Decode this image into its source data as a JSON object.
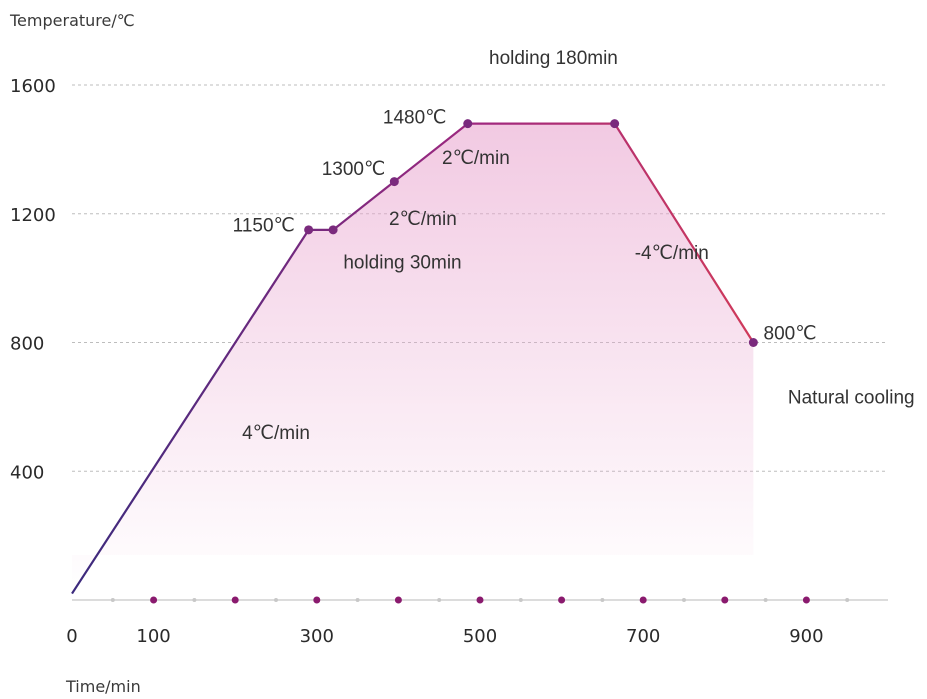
{
  "chart_data": {
    "type": "line",
    "ylabel": "Temperature/℃",
    "xlabel": "Time/min",
    "xlim": [
      0,
      1000
    ],
    "ylim": [
      0,
      1600
    ],
    "x_ticks": [
      0,
      100,
      300,
      500,
      700,
      900
    ],
    "y_ticks": [
      400,
      800,
      1200,
      1600
    ],
    "x_minor_ticks": [
      50,
      100,
      150,
      200,
      250,
      300,
      350,
      400,
      450,
      500,
      550,
      600,
      650,
      700,
      750,
      800,
      850,
      900,
      950
    ],
    "x_marker_ticks": [
      100,
      200,
      300,
      400,
      500,
      600,
      700,
      800,
      900
    ],
    "grid": true,
    "colors": {
      "start": "#3b2a7d",
      "mid": "#a0287f",
      "end": "#d03a5a",
      "fill": "#e9a6cf",
      "marker": "#7a2a7d"
    },
    "series": [
      {
        "values": [
          {
            "x": 0,
            "y": 20
          },
          {
            "x": 290,
            "y": 1150
          },
          {
            "x": 320,
            "y": 1150
          },
          {
            "x": 395,
            "y": 1300
          },
          {
            "x": 485,
            "y": 1480
          },
          {
            "x": 665,
            "y": 1480
          },
          {
            "x": 835,
            "y": 800
          }
        ]
      }
    ],
    "annotations": [
      {
        "text": "holding 180min",
        "x": 590,
        "y": 1665,
        "anchor": "middle"
      },
      {
        "text": "1480℃",
        "x": 420,
        "y": 1480,
        "anchor": "middle"
      },
      {
        "text": "2℃/min",
        "x": 495,
        "y": 1355,
        "anchor": "middle"
      },
      {
        "text": "1300℃",
        "x": 345,
        "y": 1320,
        "anchor": "middle"
      },
      {
        "text": "1150℃",
        "x": 235,
        "y": 1145,
        "anchor": "middle"
      },
      {
        "text": "2℃/min",
        "x": 430,
        "y": 1165,
        "anchor": "middle"
      },
      {
        "text": "holding 30min",
        "x": 405,
        "y": 1030,
        "anchor": "middle"
      },
      {
        "text": "-4℃/min",
        "x": 735,
        "y": 1060,
        "anchor": "middle"
      },
      {
        "text": "800℃",
        "x": 880,
        "y": 810,
        "anchor": "middle"
      },
      {
        "text": "Natural cooling",
        "x": 955,
        "y": 610,
        "anchor": "middle"
      },
      {
        "text": "4℃/min",
        "x": 250,
        "y": 500,
        "anchor": "middle"
      }
    ]
  }
}
